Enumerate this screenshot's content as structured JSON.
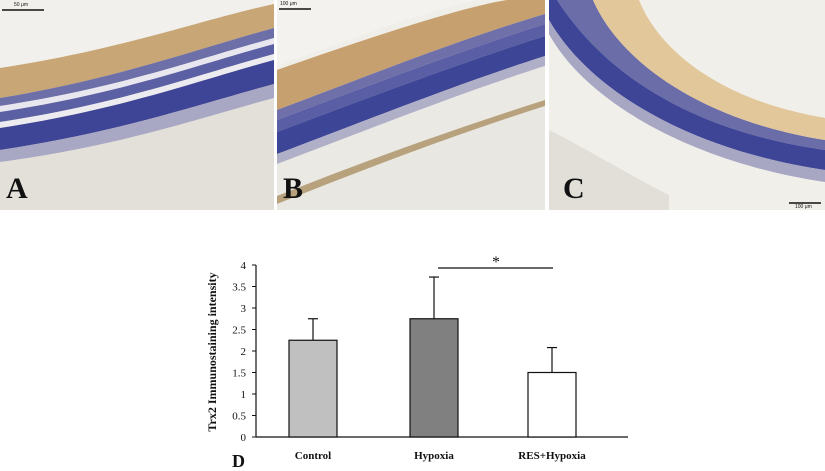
{
  "panels": [
    {
      "letter": "A",
      "scalebar": "50 μm"
    },
    {
      "letter": "B",
      "scalebar": "100 μm"
    },
    {
      "letter": "C",
      "scalebar": "100 μm"
    }
  ],
  "chart_panel_letter": "D",
  "significance_marker": "*",
  "chart_data": {
    "type": "bar",
    "categories": [
      "Control",
      "Hypoxia",
      "RES+Hypoxia"
    ],
    "values": [
      2.25,
      2.75,
      1.5
    ],
    "errors": [
      0.5,
      0.97,
      0.58
    ],
    "bar_colors": [
      "#c0c0c0",
      "#808080",
      "#ffffff"
    ],
    "ylabel": "Trx2 Immunostaining intensity",
    "ylim": [
      0,
      4
    ],
    "yticks": [
      0,
      0.5,
      1,
      1.5,
      2,
      2.5,
      3,
      3.5,
      4
    ],
    "ytick_labels": [
      "0",
      "0.5",
      "1",
      "1.5",
      "2",
      "2.5",
      "3",
      "3.5",
      "4"
    ],
    "grid": false,
    "significance": {
      "between": [
        "Hypoxia",
        "RES+Hypoxia"
      ],
      "label": "*"
    }
  }
}
